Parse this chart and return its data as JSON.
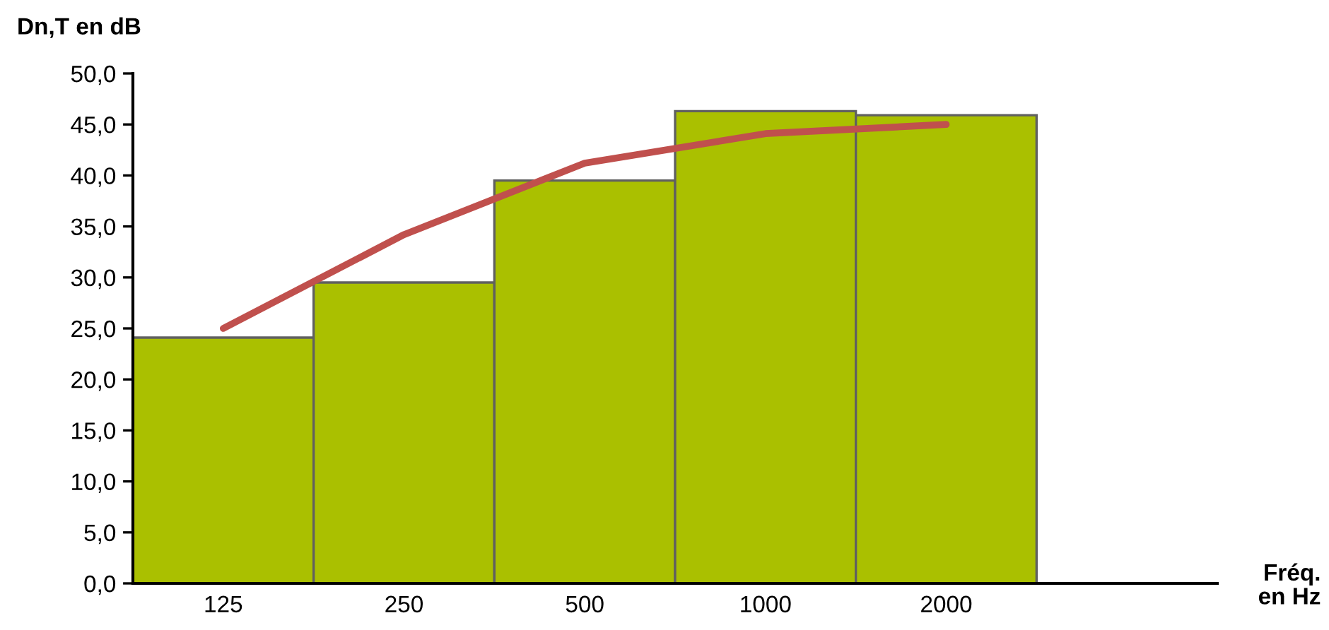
{
  "chart_data": {
    "type": "bar",
    "ylabel": "Dn,T en dB",
    "xlabel": "Fréq.\nen Hz",
    "categories": [
      "125",
      "250",
      "500",
      "1000",
      "2000",
      null
    ],
    "series": [
      {
        "color": "#aac000",
        "values": [
          24.1,
          29.5,
          39.5,
          46.3,
          45.9,
          null
        ]
      },
      {
        "type": "line",
        "color": "#c0504d",
        "values": [
          25.0,
          34.2,
          41.2,
          44.1,
          45.0,
          null
        ]
      }
    ],
    "ylim": [
      0,
      50
    ],
    "yticks": [
      {
        "value": 0,
        "label": "0,0"
      },
      {
        "value": 5,
        "label": "5,0"
      },
      {
        "value": 10,
        "label": "10,0"
      },
      {
        "value": 15,
        "label": "15,0"
      },
      {
        "value": 20,
        "label": "20,0"
      },
      {
        "value": 25,
        "label": "25,0"
      },
      {
        "value": 30,
        "label": "30,0"
      },
      {
        "value": 35,
        "label": "35,0"
      },
      {
        "value": 40,
        "label": "40,0"
      },
      {
        "value": 45,
        "label": "45,0"
      },
      {
        "value": 50,
        "label": "50,0"
      }
    ],
    "grid": false,
    "legend": false
  }
}
